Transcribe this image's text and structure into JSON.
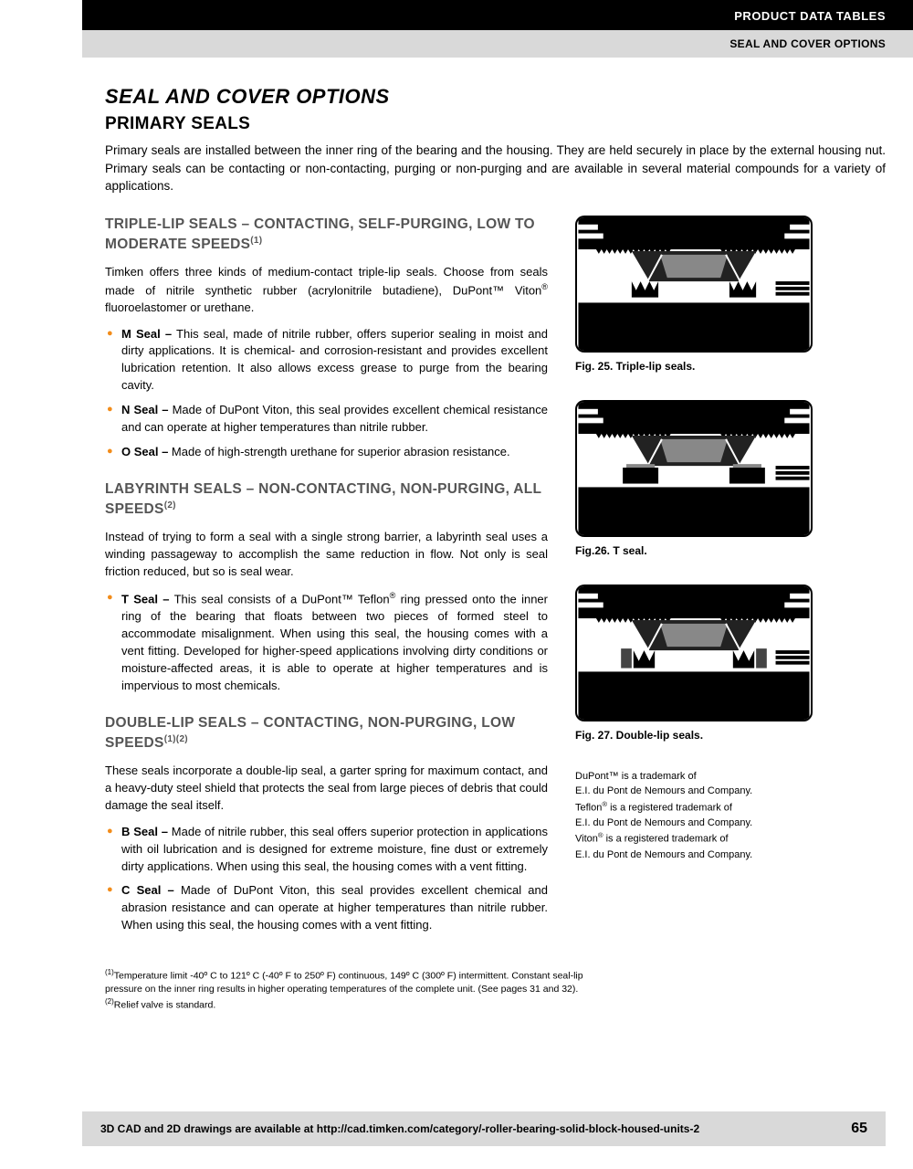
{
  "header": {
    "line1": "PRODUCT DATA TABLES",
    "line2": "SEAL AND COVER OPTIONS"
  },
  "title": "SEAL AND COVER OPTIONS",
  "subtitle": "PRIMARY SEALS",
  "intro": "Primary seals are installed between the inner ring of the bearing and the housing. They are held securely in place by the external housing nut. Primary seals can be contacting or non-contacting, purging or non-purging and are available in several material compounds for a variety of applications.",
  "sections": [
    {
      "heading_html": "TRIPLE-LIP SEALS – CONTACTING, SELF-PURGING, LOW TO MODERATE SPEEDS<sup>(1)</sup>",
      "body_html": "Timken offers three kinds of medium-contact triple-lip seals. Choose from seals made of nitrile synthetic rubber (acrylonitrile butadiene), DuPont™ Viton<sup>®</sup> fluoroelastomer or urethane.",
      "items": [
        {
          "name": "M Seal –",
          "text": " This seal, made of nitrile rubber, offers superior sealing in moist and dirty applications. It is chemical- and corrosion-resistant and provides excellent lubrication retention. It also allows excess grease to purge from the bearing cavity."
        },
        {
          "name": "N Seal –",
          "text": " Made of DuPont Viton, this seal provides excellent chemical resistance and can operate at higher temperatures than nitrile rubber."
        },
        {
          "name": "O Seal –",
          "text": " Made of high-strength urethane for superior abrasion resistance."
        }
      ]
    },
    {
      "heading_html": "LABYRINTH SEALS – NON-CONTACTING, NON-PURGING, ALL SPEEDS<sup>(2)</sup>",
      "body_html": "Instead of trying to form a seal with a single strong barrier, a labyrinth seal uses a winding passageway to accomplish the same reduction in flow. Not only is seal friction reduced, but so is seal wear.",
      "items": [
        {
          "name": "T Seal –",
          "text_html": " This seal consists of a DuPont™ Teflon<sup>®</sup> ring pressed onto the inner ring of the bearing that floats between two pieces of formed steel to accommodate misalignment. When using this seal, the housing comes with a vent fitting. Developed for higher-speed applications involving dirty conditions or moisture-affected areas, it is able to operate at higher temperatures and is impervious to most chemicals."
        }
      ]
    },
    {
      "heading_html": "DOUBLE-LIP SEALS – CONTACTING, NON-PURGING, LOW SPEEDS<sup>(1)(2)</sup>",
      "body_html": "These seals incorporate a double-lip seal, a garter spring for maximum contact, and a heavy-duty steel shield that protects the seal from large pieces of debris that could damage the seal itself.",
      "items": [
        {
          "name": "B Seal –",
          "text": " Made of nitrile rubber, this seal offers superior protection in applications with oil lubrication and is designed for extreme moisture, fine dust or extremely dirty applications. When using this seal, the housing comes with a vent fitting."
        },
        {
          "name": "C Seal –",
          "text": " Made of DuPont Viton, this seal provides excellent chemical and abrasion resistance and can operate at higher temperatures than nitrile rubber. When using this seal, the housing comes with a vent fitting."
        }
      ]
    }
  ],
  "figures": [
    {
      "caption": "Fig. 25. Triple-lip seals.",
      "type": "triple"
    },
    {
      "caption": "Fig.26. T seal.",
      "type": "tseal"
    },
    {
      "caption": "Fig. 27. Double-lip seals.",
      "type": "double"
    }
  ],
  "trademark_html": "DuPont™ is a trademark of<br>E.I. du Pont de Nemours and Company.<br>Teflon<sup>®</sup> is a registered trademark of<br>E.I. du Pont de Nemours and Company.<br>Viton<sup>®</sup> is a registered trademark of<br>E.I. du Pont de Nemours and Company.",
  "footnotes_html": "<sup>(1)</sup>Temperature limit -40º C to 121º C (-40º F to 250º F) continuous, 149º C (300º F) intermittent. Constant seal-lip pressure on the inner ring results in higher operating temperatures of the complete unit. (See pages 31 and 32).<br><sup>(2)</sup>Relief valve is standard.",
  "footer": {
    "text": "3D CAD and 2D drawings are available at http://cad.timken.com/category/-roller-bearing-solid-block-housed-units-2",
    "page": "65"
  },
  "colors": {
    "bullet": "#f28c1a",
    "heading_gray": "#555555",
    "header_gray": "#d9d9d9"
  }
}
